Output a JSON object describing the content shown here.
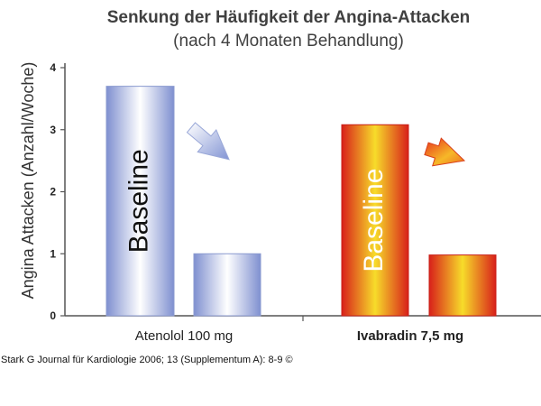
{
  "chart_data": {
    "type": "bar",
    "title": "Senkung der Häufigkeit der Angina-Attacken",
    "subtitle": "(nach 4 Monaten Behandlung)",
    "ylabel": "Angina Attacken (Anzahl/Woche)",
    "ylim": [
      0,
      4
    ],
    "yticks": [
      "0",
      "1",
      "2",
      "3",
      "4"
    ],
    "grid": false,
    "groups": [
      {
        "label": "Atenolol 100 mg",
        "bold": false,
        "bars": [
          {
            "name": "Baseline",
            "value": 3.7
          },
          {
            "name": "",
            "value": 1.0
          }
        ],
        "color": "#8f9fd6"
      },
      {
        "label": "Ivabradin 7,5 mg",
        "bold": true,
        "bars": [
          {
            "name": "Baseline",
            "value": 3.08
          },
          {
            "name": "",
            "value": 0.98
          }
        ],
        "color": "#e8542a"
      }
    ],
    "bar_text": "Baseline"
  },
  "citation": "Stark G Journal für Kardiologie 2006; 13 (Supplementum A): 8-9 ©"
}
